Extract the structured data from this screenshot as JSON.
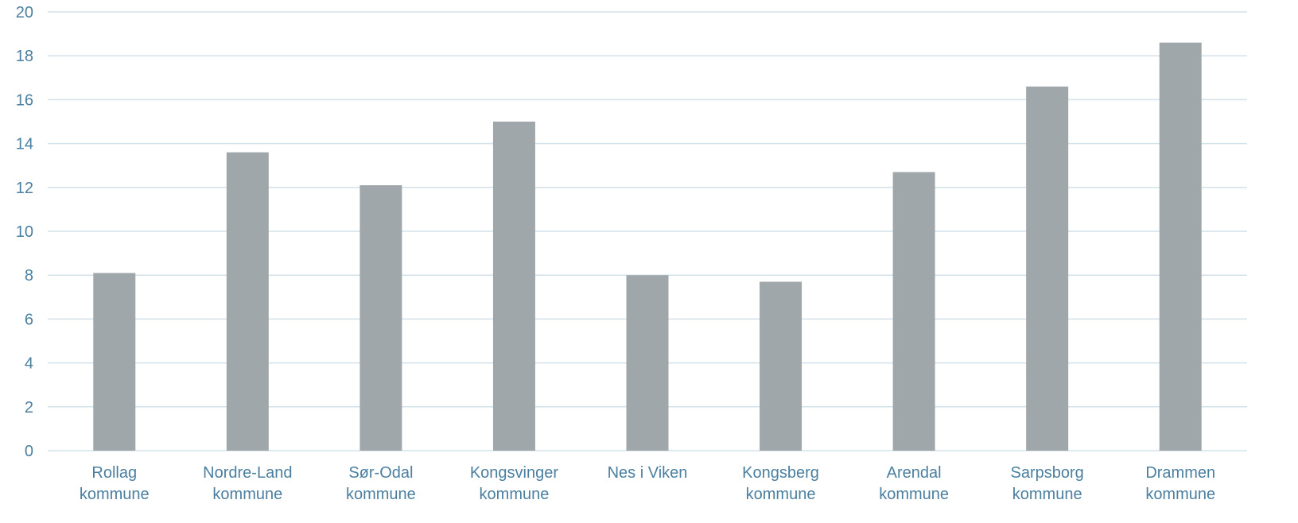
{
  "chart_data": {
    "type": "bar",
    "categories": [
      [
        "Rollag",
        "kommune"
      ],
      [
        "Nordre-Land",
        "kommune"
      ],
      [
        "Sør-Odal",
        "kommune"
      ],
      [
        "Kongsvinger",
        "kommune"
      ],
      [
        "Nes i Viken"
      ],
      [
        "Kongsberg",
        "kommune"
      ],
      [
        "Arendal",
        "kommune"
      ],
      [
        "Sarpsborg",
        "kommune"
      ],
      [
        "Drammen",
        "kommune"
      ]
    ],
    "values": [
      8.1,
      13.6,
      12.1,
      15.0,
      8.0,
      7.7,
      12.7,
      16.6,
      18.6
    ],
    "yticks": [
      "0",
      "2",
      "4",
      "6",
      "8",
      "10",
      "12",
      "14",
      "16",
      "18",
      "20"
    ],
    "ylim": [
      0,
      20
    ],
    "grid": true,
    "colors": {
      "bar": "#a0a7aa",
      "grid": "#d3e2ea",
      "text": "#4a7fa0"
    }
  }
}
